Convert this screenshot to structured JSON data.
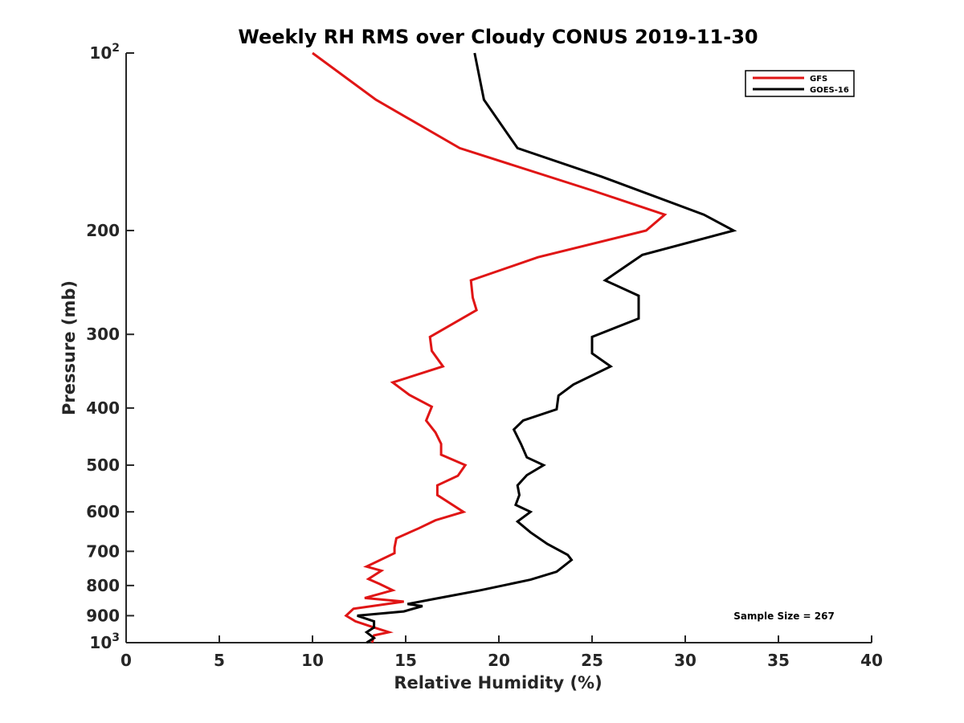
{
  "chart_data": {
    "type": "line",
    "title": "Weekly RH RMS over Cloudy CONUS 2019-11-30",
    "xlabel": "Relative Humidity (%)",
    "ylabel": "Pressure (mb)",
    "xlim": [
      0,
      40
    ],
    "ylim": [
      100,
      1000
    ],
    "y_scale": "log",
    "y_reversed": true,
    "x_ticks": [
      0,
      5,
      10,
      15,
      20,
      25,
      30,
      35,
      40
    ],
    "y_ticks": [
      {
        "value": 100,
        "label": "10",
        "sup": "2"
      },
      {
        "value": 200,
        "label": "200",
        "sup": ""
      },
      {
        "value": 300,
        "label": "300",
        "sup": ""
      },
      {
        "value": 400,
        "label": "400",
        "sup": ""
      },
      {
        "value": 500,
        "label": "500",
        "sup": ""
      },
      {
        "value": 600,
        "label": "600",
        "sup": ""
      },
      {
        "value": 700,
        "label": "700",
        "sup": ""
      },
      {
        "value": 800,
        "label": "800",
        "sup": ""
      },
      {
        "value": 900,
        "label": "900",
        "sup": ""
      },
      {
        "value": 1000,
        "label": "10",
        "sup": "3"
      }
    ],
    "grid": false,
    "legend_position": "top-right",
    "annotation": "Sample Size = 267",
    "series": [
      {
        "name": "GFS",
        "color": "#e01515",
        "points": [
          [
            10.0,
            100
          ],
          [
            13.4,
            120
          ],
          [
            17.9,
            145
          ],
          [
            25.0,
            171
          ],
          [
            28.9,
            188
          ],
          [
            27.9,
            200
          ],
          [
            22.1,
            222
          ],
          [
            18.5,
            243
          ],
          [
            18.6,
            260
          ],
          [
            18.8,
            273
          ],
          [
            16.3,
            303
          ],
          [
            16.4,
            320
          ],
          [
            17.0,
            340
          ],
          [
            14.3,
            362
          ],
          [
            15.2,
            380
          ],
          [
            16.4,
            398
          ],
          [
            16.1,
            420
          ],
          [
            16.6,
            440
          ],
          [
            16.9,
            460
          ],
          [
            16.9,
            480
          ],
          [
            18.2,
            500
          ],
          [
            17.8,
            521
          ],
          [
            16.7,
            541
          ],
          [
            16.7,
            562
          ],
          [
            18.1,
            600
          ],
          [
            16.6,
            620
          ],
          [
            15.7,
            640
          ],
          [
            14.5,
            665
          ],
          [
            14.4,
            690
          ],
          [
            14.4,
            705
          ],
          [
            12.9,
            743
          ],
          [
            13.7,
            755
          ],
          [
            13.0,
            780
          ],
          [
            13.6,
            795
          ],
          [
            14.3,
            815
          ],
          [
            12.8,
            840
          ],
          [
            14.9,
            852
          ],
          [
            12.2,
            876
          ],
          [
            11.8,
            900
          ],
          [
            12.3,
            920
          ],
          [
            13.2,
            940
          ],
          [
            14.1,
            960
          ],
          [
            13.3,
            972
          ],
          [
            13.2,
            1000
          ]
        ]
      },
      {
        "name": "GOES-16",
        "color": "#000000",
        "points": [
          [
            18.7,
            100
          ],
          [
            19.2,
            120
          ],
          [
            21.0,
            145
          ],
          [
            25.5,
            162
          ],
          [
            31.0,
            188
          ],
          [
            32.6,
            200
          ],
          [
            27.7,
            220
          ],
          [
            25.7,
            243
          ],
          [
            27.5,
            258
          ],
          [
            27.5,
            282
          ],
          [
            25.0,
            303
          ],
          [
            25.0,
            323
          ],
          [
            26.0,
            340
          ],
          [
            24.0,
            365
          ],
          [
            23.2,
            381
          ],
          [
            23.1,
            402
          ],
          [
            21.3,
            420
          ],
          [
            20.8,
            435
          ],
          [
            21.2,
            461
          ],
          [
            21.5,
            485
          ],
          [
            22.4,
            500
          ],
          [
            21.5,
            520
          ],
          [
            21.0,
            541
          ],
          [
            21.1,
            562
          ],
          [
            20.9,
            584
          ],
          [
            21.7,
            600
          ],
          [
            21.0,
            623
          ],
          [
            21.7,
            650
          ],
          [
            22.6,
            680
          ],
          [
            23.7,
            710
          ],
          [
            23.9,
            724
          ],
          [
            23.1,
            758
          ],
          [
            21.7,
            782
          ],
          [
            19.0,
            815
          ],
          [
            16.8,
            840
          ],
          [
            15.1,
            860
          ],
          [
            15.9,
            867
          ],
          [
            14.9,
            885
          ],
          [
            12.4,
            900
          ],
          [
            13.3,
            920
          ],
          [
            13.3,
            942
          ],
          [
            12.9,
            960
          ],
          [
            13.3,
            982
          ],
          [
            12.9,
            1000
          ]
        ]
      }
    ]
  }
}
